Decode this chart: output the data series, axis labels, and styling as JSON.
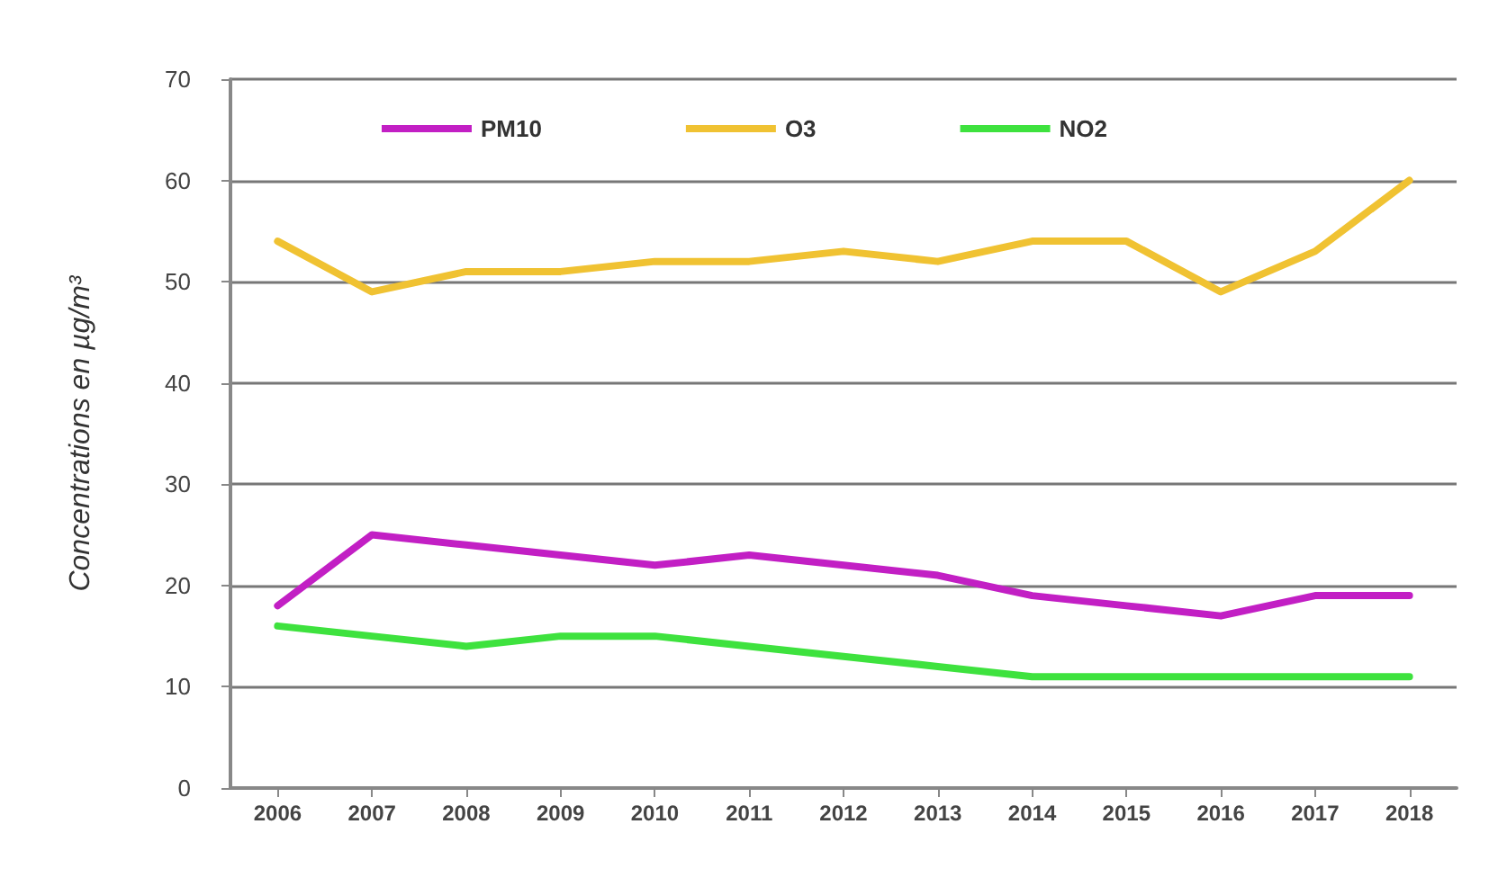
{
  "chart_data": {
    "type": "line",
    "ylabel": "Concentrations en µg/m³",
    "categories": [
      "2006",
      "2007",
      "2008",
      "2009",
      "2010",
      "2011",
      "2012",
      "2013",
      "2014",
      "2015",
      "2016",
      "2017",
      "2018"
    ],
    "series": [
      {
        "name": "PM10",
        "color": "#c21fc4",
        "values": [
          18,
          25,
          24,
          23,
          22,
          23,
          22,
          21,
          19,
          18,
          17,
          19,
          19
        ]
      },
      {
        "name": "O3",
        "color": "#f0c232",
        "values": [
          54,
          49,
          51,
          51,
          52,
          52,
          53,
          52,
          54,
          54,
          49,
          53,
          60
        ]
      },
      {
        "name": "NO2",
        "color": "#3ee23e",
        "values": [
          16,
          15,
          14,
          15,
          15,
          14,
          13,
          12,
          11,
          11,
          11,
          11,
          11
        ]
      }
    ],
    "ylim": [
      0,
      70
    ],
    "yticks": [
      0,
      10,
      20,
      30,
      40,
      50,
      60,
      70
    ],
    "grid": "y",
    "legend": "top",
    "marker": "none",
    "line_style": "solid"
  }
}
